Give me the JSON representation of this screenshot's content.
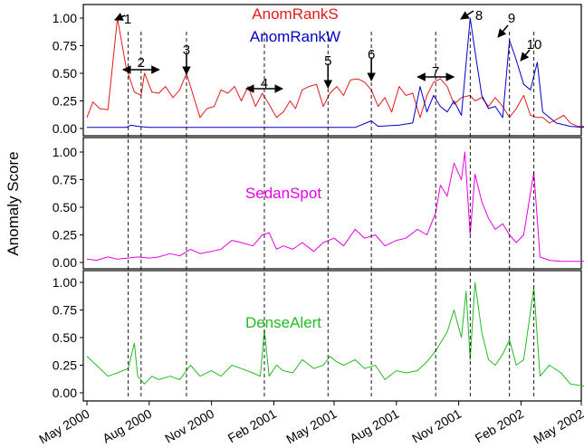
{
  "y_axis_label": "Anomaly Score",
  "x_tick_labels": [
    "May 2000",
    "Aug 2000",
    "Nov 2000",
    "Feb 2001",
    "May 2001",
    "Aug 2001",
    "Nov 2001",
    "Feb 2002",
    "May 2002"
  ],
  "y_tick_labels": [
    "0.00",
    "0.25",
    "0.50",
    "0.75",
    "1.00"
  ],
  "colors": {
    "anomrank_s": "#e41a1c",
    "anomrank_w": "#0000cc",
    "sedanspot": "#e600e6",
    "densealert": "#22bb22",
    "axis": "#000000",
    "annotation": "#000000"
  },
  "annotations": [
    {
      "label": "1",
      "date": "2000-07-01",
      "kind": "point"
    },
    {
      "label": "2",
      "date": "2000-07-20",
      "kind": "range"
    },
    {
      "label": "3",
      "date": "2000-09-25",
      "kind": "point"
    },
    {
      "label": "4",
      "date": "2001-01-18",
      "kind": "range"
    },
    {
      "label": "5",
      "date": "2001-04-22",
      "kind": "point"
    },
    {
      "label": "6",
      "date": "2001-06-25",
      "kind": "point"
    },
    {
      "label": "7",
      "date": "2001-09-28",
      "kind": "range"
    },
    {
      "label": "8",
      "date": "2001-11-18",
      "kind": "point"
    },
    {
      "label": "9",
      "date": "2002-01-15",
      "kind": "point"
    },
    {
      "label": "10",
      "date": "2002-02-20",
      "kind": "point"
    }
  ],
  "chart_data": [
    {
      "type": "line",
      "xlim": [
        "2000-03-25",
        "2002-05-20"
      ],
      "ylim": [
        0,
        1.05
      ],
      "series": [
        {
          "name": "AnomRankS",
          "x": [
            "2000-05-01",
            "2000-05-10",
            "2000-05-20",
            "2000-06-01",
            "2000-06-15",
            "2000-06-28",
            "2000-07-10",
            "2000-07-20",
            "2000-07-25",
            "2000-08-05",
            "2000-08-15",
            "2000-08-25",
            "2000-09-05",
            "2000-09-15",
            "2000-09-25",
            "2000-10-05",
            "2000-10-15",
            "2000-10-25",
            "2000-11-05",
            "2000-11-15",
            "2000-11-25",
            "2000-12-05",
            "2000-12-15",
            "2000-12-25",
            "2001-01-05",
            "2001-01-15",
            "2001-01-25",
            "2001-02-05",
            "2001-02-15",
            "2001-02-25",
            "2001-03-05",
            "2001-03-15",
            "2001-03-25",
            "2001-04-05",
            "2001-04-15",
            "2001-04-25",
            "2001-05-05",
            "2001-05-15",
            "2001-05-25",
            "2001-06-05",
            "2001-06-15",
            "2001-06-25",
            "2001-07-05",
            "2001-07-15",
            "2001-07-25",
            "2001-08-05",
            "2001-08-15",
            "2001-08-25",
            "2001-09-05",
            "2001-09-15",
            "2001-09-25",
            "2001-10-05",
            "2001-10-15",
            "2001-10-25",
            "2001-11-05",
            "2001-11-18",
            "2001-11-25",
            "2001-12-05",
            "2001-12-15",
            "2001-12-25",
            "2002-01-05",
            "2002-01-15",
            "2002-01-25",
            "2002-02-05",
            "2002-02-15",
            "2002-02-25",
            "2002-03-05",
            "2002-03-15",
            "2002-03-25",
            "2002-04-05",
            "2002-04-15",
            "2002-04-25",
            "2002-05-05"
          ],
          "values": [
            0.1,
            0.24,
            0.18,
            0.17,
            1.0,
            0.55,
            0.33,
            0.3,
            0.5,
            0.33,
            0.32,
            0.38,
            0.28,
            0.35,
            0.5,
            0.3,
            0.1,
            0.18,
            0.2,
            0.35,
            0.32,
            0.38,
            0.25,
            0.38,
            0.2,
            0.32,
            0.22,
            0.1,
            0.15,
            0.25,
            0.18,
            0.35,
            0.38,
            0.4,
            0.2,
            0.32,
            0.38,
            0.3,
            0.44,
            0.45,
            0.42,
            0.35,
            0.2,
            0.28,
            0.15,
            0.38,
            0.3,
            0.32,
            0.1,
            0.3,
            0.42,
            0.45,
            0.38,
            0.22,
            0.28,
            0.3,
            0.25,
            0.28,
            0.2,
            0.28,
            0.2,
            0.1,
            0.18,
            0.3,
            0.12,
            0.1,
            0.1,
            0.05,
            0.08,
            0.12,
            0.05,
            0.02,
            0.02
          ]
        },
        {
          "name": "AnomRankW",
          "x": [
            "2000-05-01",
            "2000-06-28",
            "2000-07-05",
            "2000-07-15",
            "2000-08-01",
            "2001-06-01",
            "2001-06-25",
            "2001-07-05",
            "2001-08-05",
            "2001-08-25",
            "2001-09-05",
            "2001-09-15",
            "2001-09-25",
            "2001-10-05",
            "2001-10-15",
            "2001-10-25",
            "2001-11-05",
            "2001-11-18",
            "2001-11-25",
            "2001-12-05",
            "2001-12-15",
            "2001-12-25",
            "2002-01-05",
            "2002-01-15",
            "2002-01-25",
            "2002-02-05",
            "2002-02-15",
            "2002-02-25",
            "2002-03-05",
            "2002-03-25",
            "2002-04-15",
            "2002-05-05"
          ],
          "values": [
            0.01,
            0.01,
            0.03,
            0.02,
            0.01,
            0.01,
            0.07,
            0.02,
            0.03,
            0.05,
            0.38,
            0.15,
            0.3,
            0.2,
            0.15,
            0.25,
            0.12,
            1.0,
            0.7,
            0.3,
            0.18,
            0.2,
            0.1,
            0.8,
            0.62,
            0.4,
            0.35,
            0.6,
            0.15,
            0.05,
            0.02,
            0.01
          ]
        }
      ]
    },
    {
      "type": "line",
      "xlim": [
        "2000-03-25",
        "2002-05-20"
      ],
      "ylim": [
        0,
        1.05
      ],
      "series": [
        {
          "name": "SedanSpot",
          "x": [
            "2000-05-01",
            "2000-05-15",
            "2000-06-01",
            "2000-06-15",
            "2000-07-01",
            "2000-07-15",
            "2000-08-01",
            "2000-08-15",
            "2000-09-01",
            "2000-09-15",
            "2000-10-01",
            "2000-10-15",
            "2000-11-01",
            "2000-11-15",
            "2000-12-01",
            "2000-12-15",
            "2001-01-01",
            "2001-01-15",
            "2001-01-25",
            "2001-02-05",
            "2001-02-15",
            "2001-03-01",
            "2001-03-15",
            "2001-04-01",
            "2001-04-15",
            "2001-05-01",
            "2001-05-15",
            "2001-06-01",
            "2001-06-15",
            "2001-07-01",
            "2001-07-15",
            "2001-08-01",
            "2001-08-15",
            "2001-09-01",
            "2001-09-15",
            "2001-09-28",
            "2001-10-05",
            "2001-10-15",
            "2001-10-25",
            "2001-11-05",
            "2001-11-10",
            "2001-11-18",
            "2001-11-25",
            "2001-12-05",
            "2001-12-15",
            "2001-12-25",
            "2002-01-05",
            "2002-01-15",
            "2002-01-25",
            "2002-02-05",
            "2002-02-20",
            "2002-03-01",
            "2002-03-15",
            "2002-04-01",
            "2002-04-15",
            "2002-05-05"
          ],
          "values": [
            0.03,
            0.02,
            0.05,
            0.03,
            0.04,
            0.05,
            0.04,
            0.05,
            0.08,
            0.06,
            0.12,
            0.08,
            0.1,
            0.12,
            0.2,
            0.18,
            0.15,
            0.25,
            0.27,
            0.12,
            0.15,
            0.12,
            0.18,
            0.1,
            0.18,
            0.22,
            0.15,
            0.3,
            0.22,
            0.25,
            0.15,
            0.2,
            0.22,
            0.3,
            0.25,
            0.45,
            0.7,
            0.6,
            0.9,
            0.75,
            1.0,
            0.25,
            0.8,
            0.55,
            0.4,
            0.3,
            0.35,
            0.25,
            0.18,
            0.25,
            0.82,
            0.05,
            0.02,
            0.01,
            0.01,
            0.01
          ]
        }
      ]
    },
    {
      "type": "line",
      "xlim": [
        "2000-03-25",
        "2002-05-20"
      ],
      "ylim": [
        0,
        1.05
      ],
      "series": [
        {
          "name": "DenseAlert",
          "x": [
            "2000-05-01",
            "2000-05-15",
            "2000-06-01",
            "2000-06-15",
            "2000-07-01",
            "2000-07-10",
            "2000-07-15",
            "2000-07-25",
            "2000-08-05",
            "2000-08-15",
            "2000-09-01",
            "2000-09-15",
            "2000-10-01",
            "2000-10-15",
            "2000-11-01",
            "2000-11-15",
            "2000-12-01",
            "2000-12-15",
            "2001-01-01",
            "2001-01-12",
            "2001-01-18",
            "2001-01-25",
            "2001-02-05",
            "2001-02-15",
            "2001-03-01",
            "2001-03-15",
            "2001-04-01",
            "2001-04-15",
            "2001-04-25",
            "2001-05-05",
            "2001-05-15",
            "2001-06-01",
            "2001-06-15",
            "2001-07-01",
            "2001-07-15",
            "2001-08-01",
            "2001-08-15",
            "2001-09-01",
            "2001-09-15",
            "2001-09-28",
            "2001-10-05",
            "2001-10-15",
            "2001-10-25",
            "2001-11-05",
            "2001-11-12",
            "2001-11-18",
            "2001-11-25",
            "2001-12-05",
            "2001-12-15",
            "2001-12-25",
            "2002-01-05",
            "2002-01-15",
            "2002-01-25",
            "2002-02-05",
            "2002-02-20",
            "2002-03-01",
            "2002-03-15",
            "2002-04-01",
            "2002-04-15",
            "2002-05-05"
          ],
          "values": [
            0.33,
            0.25,
            0.15,
            0.18,
            0.22,
            0.45,
            0.15,
            0.08,
            0.15,
            0.12,
            0.15,
            0.12,
            0.25,
            0.15,
            0.2,
            0.15,
            0.25,
            0.22,
            0.18,
            0.15,
            0.57,
            0.15,
            0.25,
            0.2,
            0.18,
            0.3,
            0.22,
            0.25,
            0.33,
            0.28,
            0.25,
            0.3,
            0.22,
            0.25,
            0.12,
            0.2,
            0.18,
            0.2,
            0.28,
            0.38,
            0.45,
            0.55,
            0.75,
            0.5,
            0.92,
            0.3,
            1.0,
            0.55,
            0.3,
            0.25,
            0.35,
            0.48,
            0.25,
            0.3,
            0.95,
            0.15,
            0.25,
            0.18,
            0.08,
            0.06
          ]
        }
      ]
    }
  ]
}
